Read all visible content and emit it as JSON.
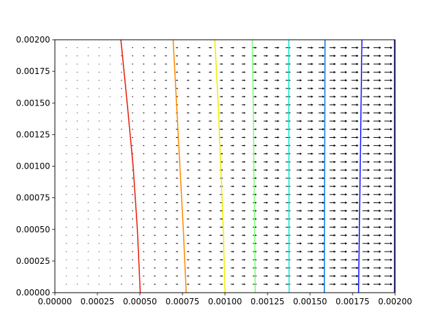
{
  "chart_data": {
    "type": "quiver",
    "title": "",
    "xlabel": "",
    "ylabel": "",
    "xlim": [
      0,
      0.002
    ],
    "ylim": [
      0,
      0.002
    ],
    "grid": false,
    "legend": "none",
    "x_ticks": [
      {
        "value": 0.0,
        "label": "0.00000"
      },
      {
        "value": 0.00025,
        "label": "0.00025"
      },
      {
        "value": 0.0005,
        "label": "0.00050"
      },
      {
        "value": 0.00075,
        "label": "0.00075"
      },
      {
        "value": 0.001,
        "label": "0.00100"
      },
      {
        "value": 0.00125,
        "label": "0.00125"
      },
      {
        "value": 0.0015,
        "label": "0.00150"
      },
      {
        "value": 0.00175,
        "label": "0.00175"
      },
      {
        "value": 0.002,
        "label": "0.00200"
      }
    ],
    "y_ticks": [
      {
        "value": 0.0,
        "label": "0.00000"
      },
      {
        "value": 0.00025,
        "label": "0.00025"
      },
      {
        "value": 0.0005,
        "label": "0.00050"
      },
      {
        "value": 0.00075,
        "label": "0.00075"
      },
      {
        "value": 0.001,
        "label": "0.00100"
      },
      {
        "value": 0.00125,
        "label": "0.00125"
      },
      {
        "value": 0.0015,
        "label": "0.00150"
      },
      {
        "value": 0.00175,
        "label": "0.00175"
      },
      {
        "value": 0.002,
        "label": "0.00200"
      }
    ],
    "quiver": {
      "nx": 30,
      "ny": 30,
      "x_start": 6.67e-05,
      "y_start": 6.67e-05,
      "step": 6.45e-05,
      "max_length": 4.95e-05,
      "color": "#000000"
    },
    "contours": [
      {
        "color": "#e8220f",
        "x": [
          0.000388,
          0.000425,
          0.00046,
          0.000485,
          0.000502
        ],
        "y": [
          0.002,
          0.0015,
          0.001,
          0.0005,
          0.0
        ]
      },
      {
        "color": "#ff8c00",
        "x": [
          0.000695,
          0.000715,
          0.000735,
          0.000755,
          0.000772
        ],
        "y": [
          0.002,
          0.0015,
          0.001,
          0.0005,
          0.0
        ]
      },
      {
        "color": "#eef000",
        "x": [
          0.00094,
          0.00096,
          0.000975,
          0.00099,
          0.001
        ],
        "y": [
          0.002,
          0.0015,
          0.001,
          0.0005,
          0.0
        ]
      },
      {
        "color": "#7eff7a",
        "x": [
          0.00116,
          0.001166,
          0.00117,
          0.001174,
          0.001178
        ],
        "y": [
          0.002,
          0.0015,
          0.001,
          0.0005,
          0.0
        ]
      },
      {
        "color": "#18e6d6",
        "x": [
          0.001375,
          0.001375,
          0.001376,
          0.001376,
          0.001377
        ],
        "y": [
          0.002,
          0.0015,
          0.001,
          0.0005,
          0.0
        ]
      },
      {
        "color": "#0a7fe6",
        "x": [
          0.001588,
          0.001587,
          0.001586,
          0.001585,
          0.001584
        ],
        "y": [
          0.002,
          0.0015,
          0.001,
          0.0005,
          0.0
        ]
      },
      {
        "color": "#1a1aff",
        "x": [
          0.001805,
          0.0018,
          0.001795,
          0.00179,
          0.001785
        ],
        "y": [
          0.002,
          0.0015,
          0.001,
          0.0005,
          0.0
        ]
      },
      {
        "color": "#000080",
        "x": [
          0.001997,
          0.001997,
          0.001997,
          0.001997,
          0.001997
        ],
        "y": [
          0.002,
          0.0015,
          0.001,
          0.0005,
          0.0
        ]
      }
    ]
  }
}
